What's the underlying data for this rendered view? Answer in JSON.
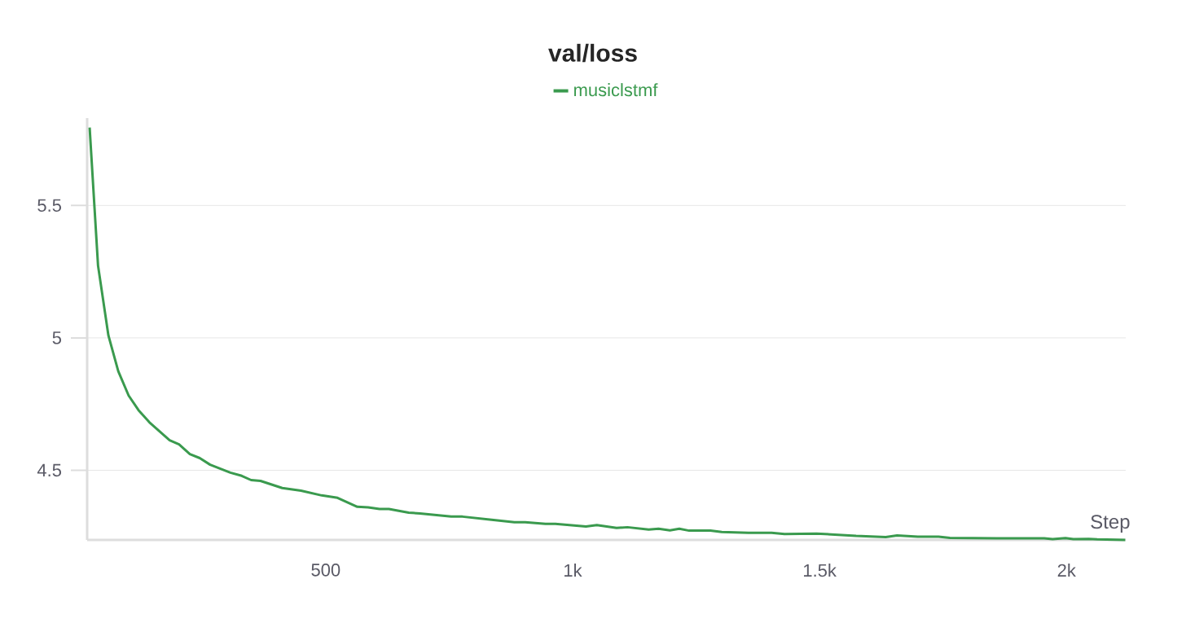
{
  "chart_data": {
    "type": "line",
    "title": "val/loss",
    "xlabel": "Step",
    "x": [
      22,
      39,
      60,
      80,
      101,
      121,
      143,
      184,
      203,
      225,
      245,
      266,
      307,
      330,
      349,
      368,
      412,
      450,
      492,
      524,
      564,
      586,
      609,
      628,
      668,
      691,
      754,
      777,
      836,
      882,
      904,
      945,
      965,
      1027,
      1049,
      1089,
      1111,
      1154,
      1174,
      1197,
      1216,
      1236,
      1279,
      1302,
      1356,
      1403,
      1429,
      1494,
      1574,
      1634,
      1657,
      1699,
      1741,
      1764,
      1858,
      1955,
      1972,
      1998,
      2014,
      2045,
      2062,
      2119
    ],
    "series": [
      {
        "name": "musiclstmf",
        "color": "#3a9a4e",
        "values": [
          5.794,
          5.273,
          5.009,
          4.874,
          4.782,
          4.727,
          4.681,
          4.613,
          4.598,
          4.561,
          4.546,
          4.521,
          4.491,
          4.479,
          4.463,
          4.46,
          4.433,
          4.423,
          4.405,
          4.396,
          4.362,
          4.36,
          4.354,
          4.354,
          4.34,
          4.337,
          4.325,
          4.325,
          4.313,
          4.304,
          4.304,
          4.298,
          4.298,
          4.288,
          4.293,
          4.282,
          4.285,
          4.276,
          4.279,
          4.273,
          4.279,
          4.272,
          4.272,
          4.267,
          4.264,
          4.264,
          4.259,
          4.261,
          4.252,
          4.248,
          4.254,
          4.249,
          4.249,
          4.245,
          4.243,
          4.243,
          4.24,
          4.244,
          4.24,
          4.241,
          4.239,
          4.237
        ]
      }
    ],
    "xlim": [
      17,
      2120
    ],
    "ylim": [
      4.237,
      5.83
    ],
    "xticks": [
      {
        "value": 500,
        "label": "500"
      },
      {
        "value": 1000,
        "label": "1k"
      },
      {
        "value": 1500,
        "label": "1.5k"
      },
      {
        "value": 2000,
        "label": "2k"
      }
    ],
    "yticks": [
      4.5,
      5,
      5.5
    ],
    "grid": "y",
    "legend": "top",
    "marker": "none",
    "line_style": "solid"
  }
}
